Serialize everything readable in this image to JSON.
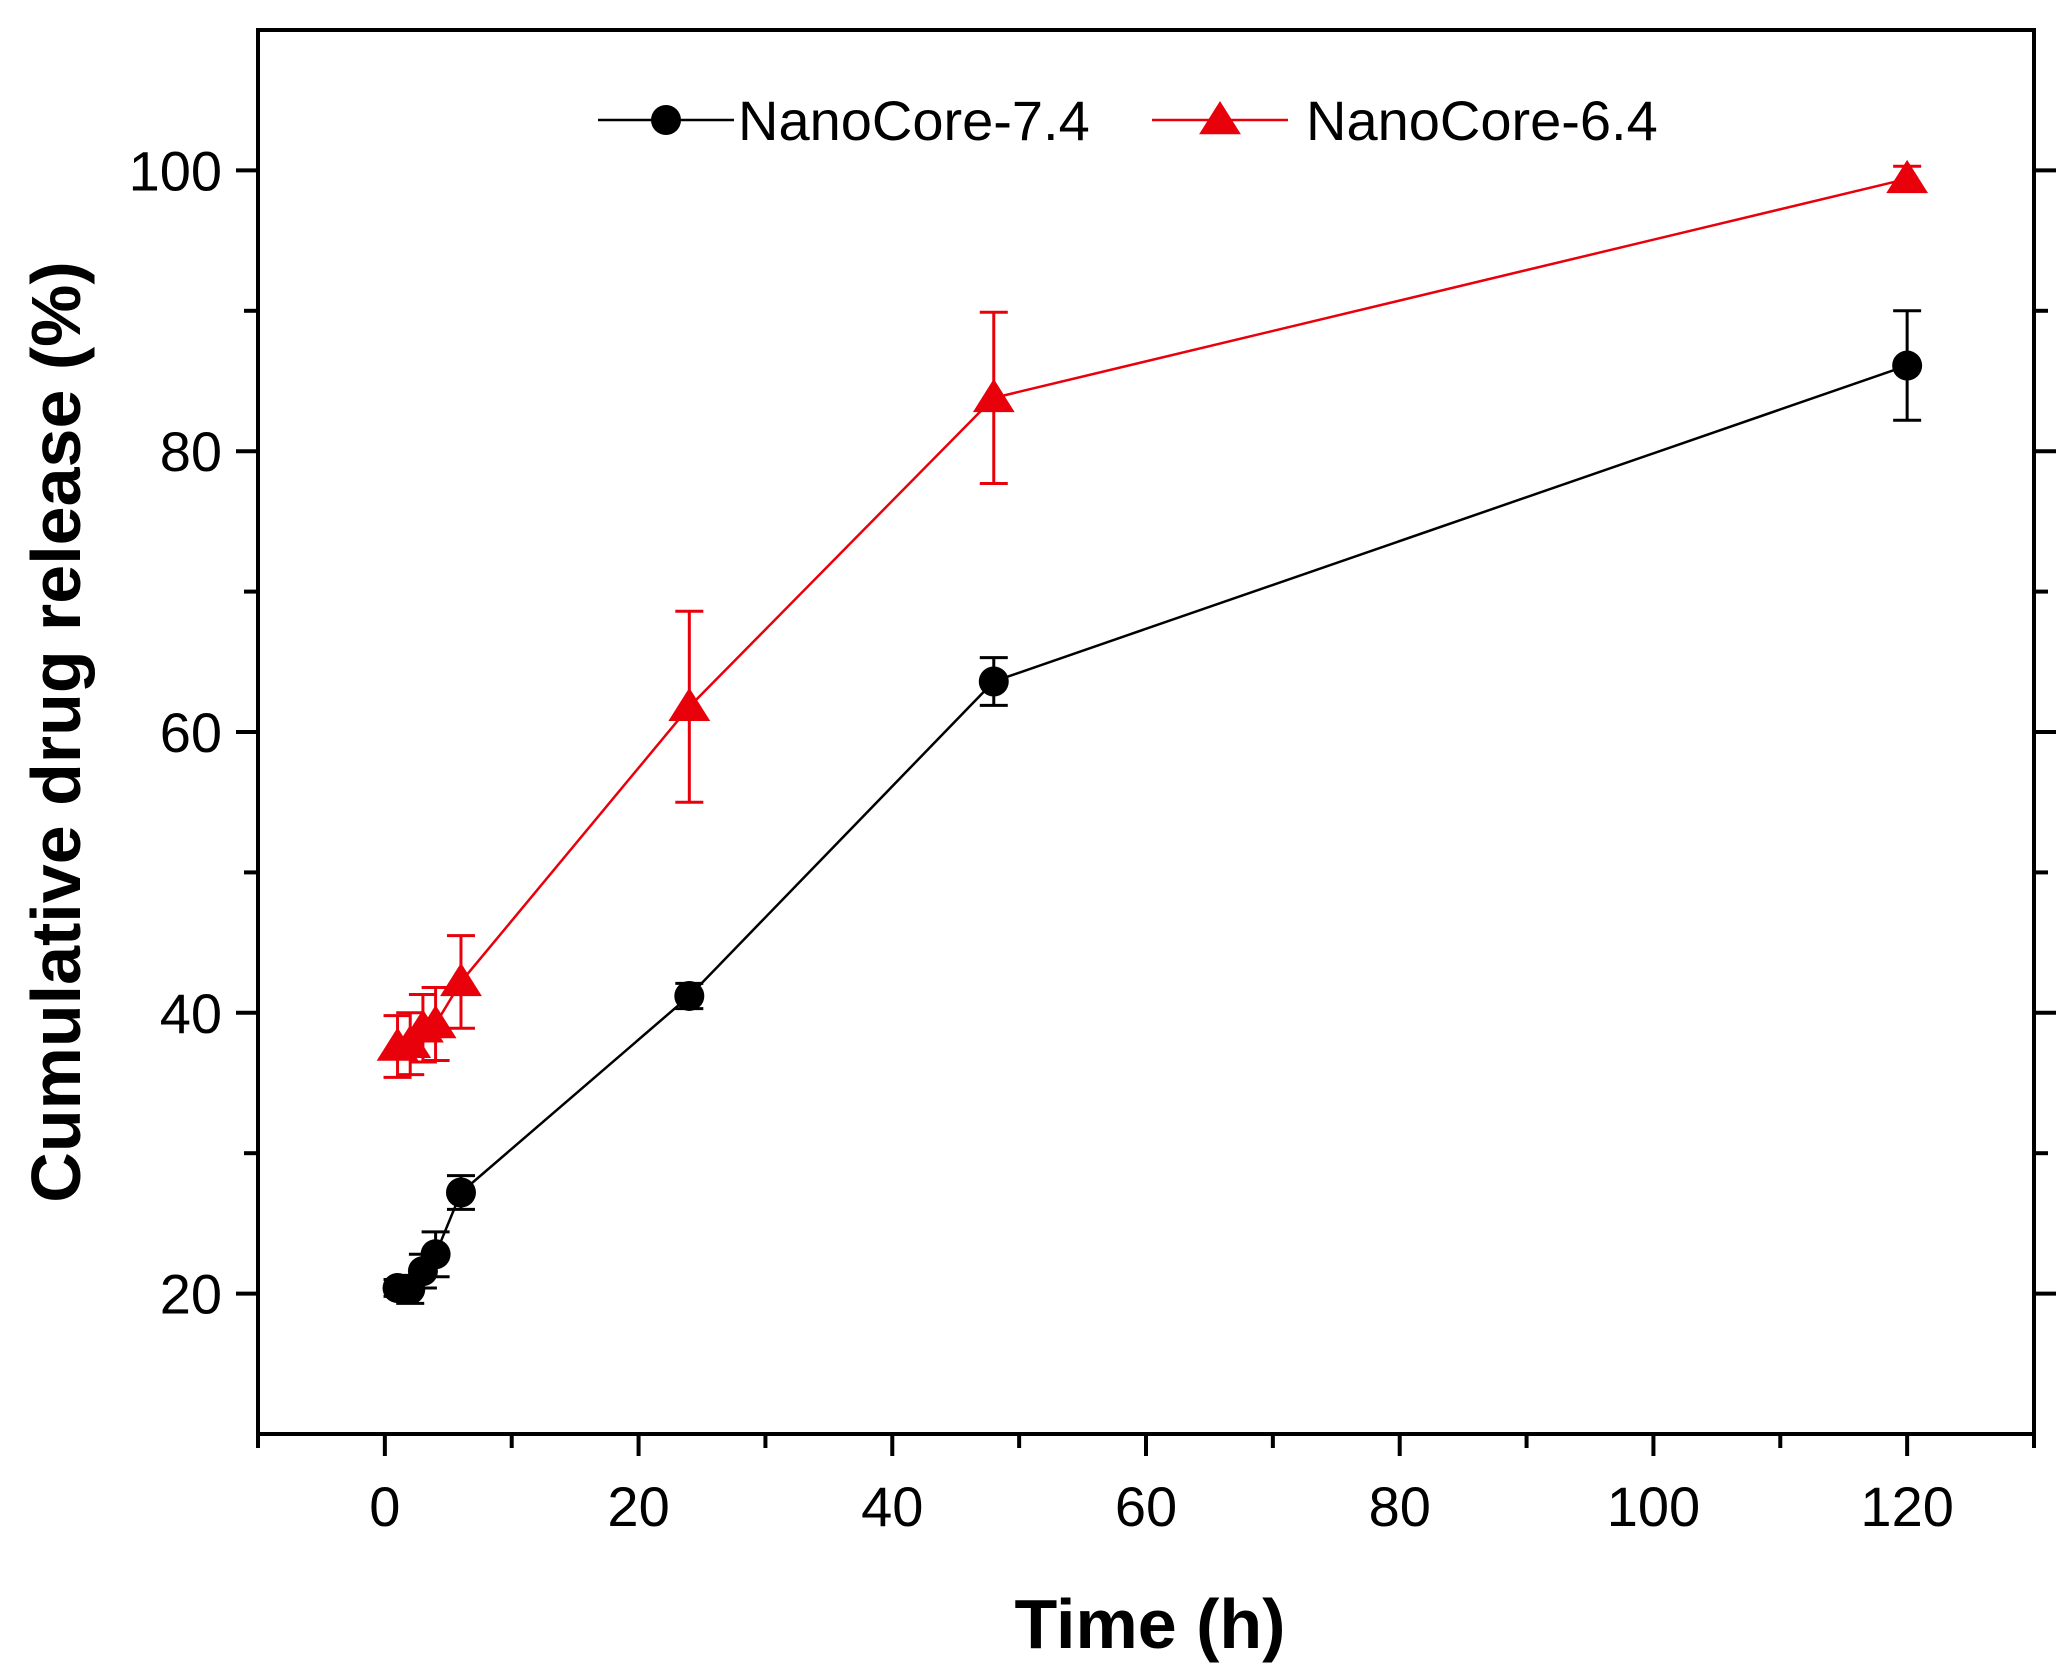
{
  "chart_data": {
    "type": "line",
    "title": "",
    "xlabel": "Time (h)",
    "ylabel": "Cumulative drug release (%)",
    "xlim": [
      -10,
      130
    ],
    "ylim": [
      10,
      110
    ],
    "xticks": [
      0,
      20,
      40,
      60,
      80,
      100,
      120
    ],
    "yticks": [
      20,
      40,
      60,
      80,
      100
    ],
    "x_minor_step": 10,
    "y_minor_step": 10,
    "grid": false,
    "legend_position": "top",
    "series": [
      {
        "name": "NanoCore-7.4",
        "color": "#000000",
        "marker": "circle",
        "x": [
          1,
          2,
          3,
          4,
          6,
          24,
          48,
          120
        ],
        "y": [
          20.4,
          20.3,
          21.6,
          22.8,
          27.2,
          41.2,
          63.6,
          86.1
        ],
        "error": [
          0.6,
          1.0,
          1.2,
          1.6,
          1.2,
          0.9,
          1.7,
          3.9
        ]
      },
      {
        "name": "NanoCore-6.4",
        "color": "#e8000b",
        "marker": "triangle",
        "x": [
          1,
          2,
          3,
          4,
          6,
          24,
          48,
          120
        ],
        "y": [
          37.6,
          37.8,
          38.9,
          39.2,
          42.2,
          61.8,
          83.8,
          99.4
        ],
        "error": [
          2.2,
          2.2,
          2.4,
          2.6,
          3.3,
          6.8,
          6.1,
          0.9
        ]
      }
    ]
  }
}
